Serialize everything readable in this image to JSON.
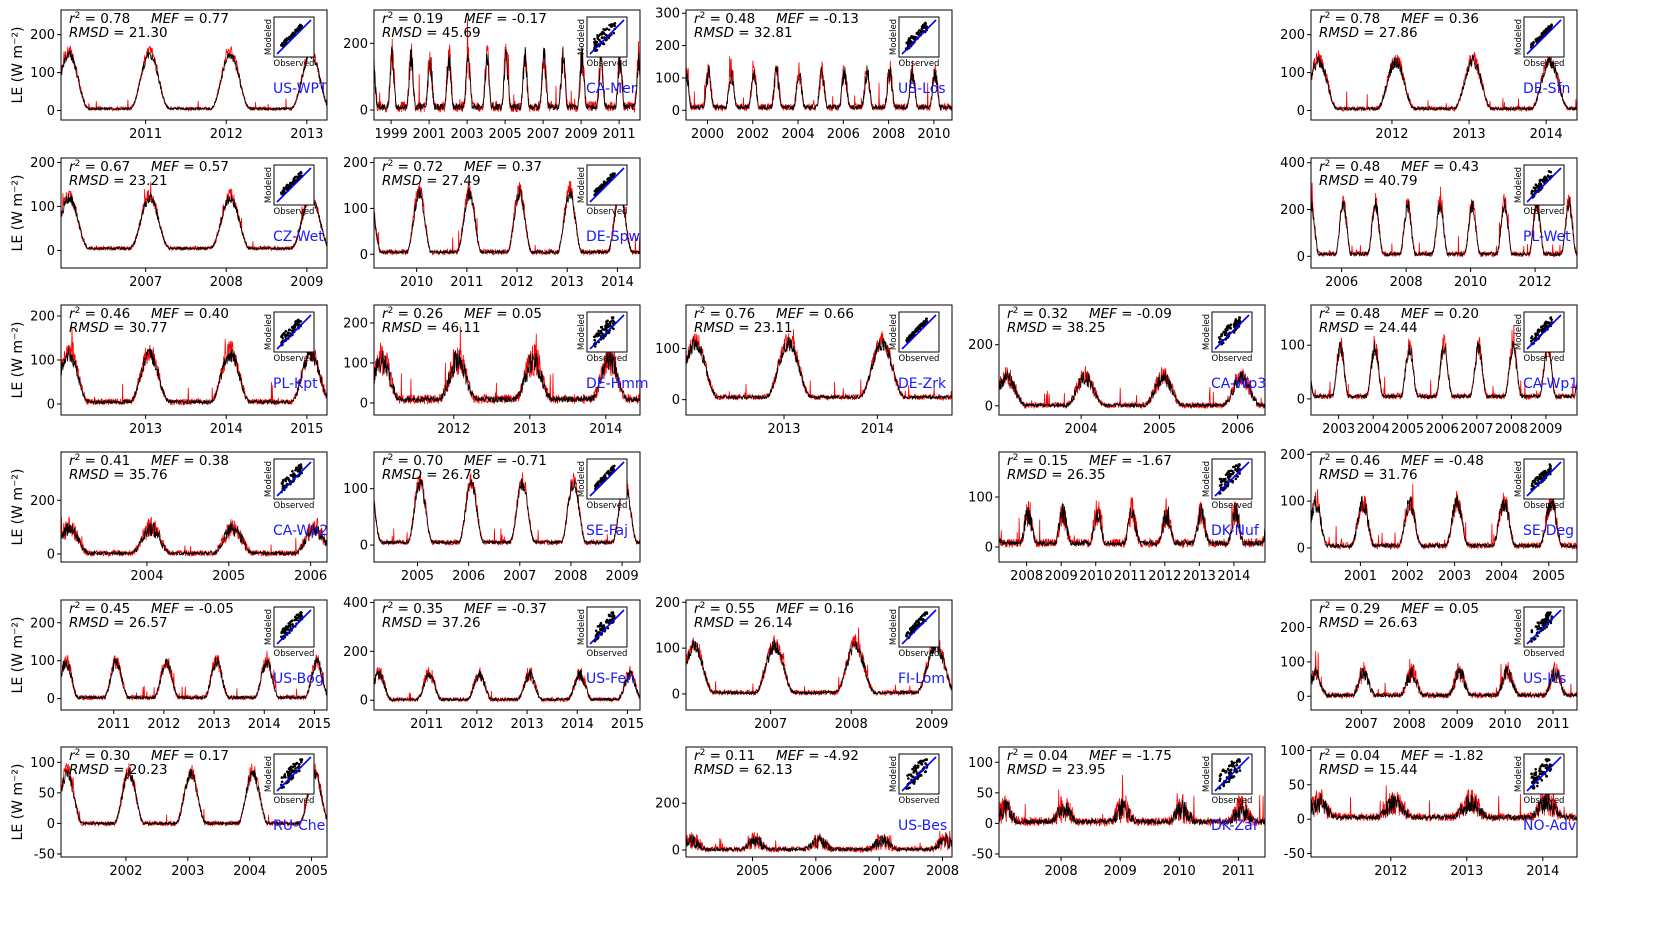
{
  "figure": {
    "ylabel": "LE (W m⁻²)",
    "inset_xlabel": "Observed",
    "inset_ylabel": "Modeled",
    "colors": {
      "observed": "#ff0000",
      "modeled": "#000000",
      "one_to_one": "#0000ff",
      "site_label": "#1a1aff"
    }
  },
  "chart_data": [
    {
      "type": "line",
      "site": "US-WPT",
      "r2": "0.78",
      "mef": "0.77",
      "rmsd": "21.30",
      "xticks": [
        "2011",
        "2012",
        "2013"
      ],
      "xlim": [
        2010.45,
        2013.75
      ],
      "yticks": [
        0,
        100,
        200
      ],
      "ylim": [
        -25,
        265
      ],
      "peak": 155,
      "floor": 5,
      "noise": 12,
      "spikes": []
    },
    {
      "type": "line",
      "site": "CA-Mer",
      "r2": "0.19",
      "mef": "-0.17",
      "rmsd": "45.69",
      "xticks": [
        "1999",
        "2001",
        "2003",
        "2005",
        "2007",
        "2009",
        "2011"
      ],
      "xlim": [
        1998.6,
        2012.6
      ],
      "yticks": [
        0,
        200
      ],
      "ylim": [
        -30,
        300
      ],
      "peak": 160,
      "floor": 10,
      "noise": 40,
      "spikes": []
    },
    {
      "type": "line",
      "site": "US-Los",
      "r2": "0.48",
      "mef": "-0.13",
      "rmsd": "32.81",
      "xticks": [
        "2000",
        "2002",
        "2004",
        "2006",
        "2008",
        "2010"
      ],
      "xlim": [
        1999.55,
        2011.3
      ],
      "yticks": [
        0,
        100,
        200,
        300
      ],
      "ylim": [
        -30,
        310
      ],
      "peak": 120,
      "floor": 10,
      "noise": 28,
      "spikes": []
    },
    {
      "type": "line",
      "site": "DE-Sfn",
      "r2": "0.78",
      "mef": "0.36",
      "rmsd": "27.86",
      "xticks": [
        "2012",
        "2013",
        "2014"
      ],
      "xlim": [
        2011.45,
        2014.9
      ],
      "yticks": [
        0,
        100,
        200
      ],
      "ylim": [
        -25,
        265
      ],
      "peak": 135,
      "floor": 5,
      "noise": 16,
      "spikes": []
    },
    {
      "type": "line",
      "site": "CZ-Wet",
      "r2": "0.67",
      "mef": "0.57",
      "rmsd": "23.21",
      "xticks": [
        "2007",
        "2008",
        "2009"
      ],
      "xlim": [
        2006.45,
        2009.75
      ],
      "yticks": [
        0,
        100,
        200
      ],
      "ylim": [
        -40,
        210
      ],
      "peak": 125,
      "floor": 5,
      "noise": 12,
      "spikes": []
    },
    {
      "type": "line",
      "site": "DE-Spw",
      "r2": "0.72",
      "mef": "0.37",
      "rmsd": "27.49",
      "xticks": [
        "2010",
        "2011",
        "2012",
        "2013",
        "2014"
      ],
      "xlim": [
        2009.65,
        2014.95
      ],
      "yticks": [
        0,
        100,
        200
      ],
      "ylim": [
        -30,
        210
      ],
      "peak": 140,
      "floor": 5,
      "noise": 15,
      "spikes": []
    },
    {
      "type": "line",
      "site": "PL-Wet",
      "r2": "0.48",
      "mef": "0.43",
      "rmsd": "40.79",
      "xticks": [
        "2006",
        "2008",
        "2010",
        "2012"
      ],
      "xlim": [
        2005.55,
        2013.8
      ],
      "yticks": [
        0,
        200,
        400
      ],
      "ylim": [
        -50,
        420
      ],
      "peak": 230,
      "floor": 10,
      "noise": 30,
      "spikes": []
    },
    {
      "type": "line",
      "site": "PL-Kpt",
      "r2": "0.46",
      "mef": "0.40",
      "rmsd": "30.77",
      "xticks": [
        "2013",
        "2014",
        "2015"
      ],
      "xlim": [
        2012.45,
        2015.75
      ],
      "yticks": [
        0,
        100,
        200
      ],
      "ylim": [
        -25,
        225
      ],
      "peak": 120,
      "floor": 5,
      "noise": 18,
      "spikes": []
    },
    {
      "type": "line",
      "site": "DE-Hmm",
      "r2": "0.26",
      "mef": "0.05",
      "rmsd": "46.11",
      "xticks": [
        "2012",
        "2013",
        "2014"
      ],
      "xlim": [
        2011.45,
        2014.95
      ],
      "yticks": [
        0,
        100,
        200
      ],
      "ylim": [
        -30,
        245
      ],
      "peak": 110,
      "floor": 10,
      "noise": 30,
      "spikes": []
    },
    {
      "type": "line",
      "site": "DE-Zrk",
      "r2": "0.76",
      "mef": "0.66",
      "rmsd": "23.11",
      "xticks": [
        "2013",
        "2014"
      ],
      "xlim": [
        2012.45,
        2015.3
      ],
      "yticks": [
        0,
        100
      ],
      "ylim": [
        -30,
        185
      ],
      "peak": 115,
      "floor": 5,
      "noise": 14,
      "spikes": []
    },
    {
      "type": "line",
      "site": "CA-Wp3",
      "r2": "0.32",
      "mef": "-0.09",
      "rmsd": "38.25",
      "xticks": [
        "2004",
        "2005",
        "2006"
      ],
      "xlim": [
        2003.45,
        2006.85
      ],
      "yticks": [
        0,
        200
      ],
      "ylim": [
        -30,
        330
      ],
      "peak": 95,
      "floor": 2,
      "noise": 25,
      "spikes": []
    },
    {
      "type": "line",
      "site": "CA-Wp1",
      "r2": "0.48",
      "mef": "0.20",
      "rmsd": "24.44",
      "xticks": [
        "2003",
        "2004",
        "2005",
        "2006",
        "2007",
        "2008",
        "2009"
      ],
      "xlim": [
        2002.7,
        2010.4
      ],
      "yticks": [
        0,
        100
      ],
      "ylim": [
        -30,
        175
      ],
      "peak": 100,
      "floor": 5,
      "noise": 14,
      "spikes": []
    },
    {
      "type": "line",
      "site": "CA-Wp2",
      "r2": "0.41",
      "mef": "0.38",
      "rmsd": "35.76",
      "xticks": [
        "2004",
        "2005",
        "2006"
      ],
      "xlim": [
        2003.45,
        2006.7
      ],
      "yticks": [
        0,
        200
      ],
      "ylim": [
        -30,
        380
      ],
      "peak": 100,
      "floor": 3,
      "noise": 28,
      "spikes": []
    },
    {
      "type": "line",
      "site": "SE-Faj",
      "r2": "0.70",
      "mef": "-0.71",
      "rmsd": "26.78",
      "xticks": [
        "2005",
        "2006",
        "2007",
        "2008",
        "2009"
      ],
      "xlim": [
        2004.65,
        2009.85
      ],
      "yticks": [
        0,
        100
      ],
      "ylim": [
        -30,
        165
      ],
      "peak": 115,
      "floor": 5,
      "noise": 12,
      "spikes": []
    },
    {
      "type": "line",
      "site": "DK-Nuf",
      "r2": "0.15",
      "mef": "-1.67",
      "rmsd": "26.35",
      "xticks": [
        "2008",
        "2009",
        "2010",
        "2011",
        "2012",
        "2013",
        "2014"
      ],
      "xlim": [
        2007.7,
        2015.4
      ],
      "yticks": [
        0,
        100
      ],
      "ylim": [
        -30,
        190
      ],
      "peak": 70,
      "floor": 8,
      "noise": 22,
      "spikes": []
    },
    {
      "type": "line",
      "site": "SE-Deg",
      "r2": "0.46",
      "mef": "-0.48",
      "rmsd": "31.76",
      "xticks": [
        "2001",
        "2002",
        "2003",
        "2004",
        "2005"
      ],
      "xlim": [
        2000.45,
        2006.1
      ],
      "yticks": [
        0,
        100,
        200
      ],
      "ylim": [
        -30,
        205
      ],
      "peak": 100,
      "floor": 5,
      "noise": 18,
      "spikes": []
    },
    {
      "type": "line",
      "site": "US-Bog",
      "r2": "0.45",
      "mef": "-0.05",
      "rmsd": "26.57",
      "xticks": [
        "2011",
        "2012",
        "2013",
        "2014",
        "2015"
      ],
      "xlim": [
        2010.45,
        2015.75
      ],
      "yticks": [
        0,
        100,
        200
      ],
      "ylim": [
        -30,
        260
      ],
      "peak": 100,
      "floor": 3,
      "noise": 16,
      "spikes": []
    },
    {
      "type": "line",
      "site": "US-Fen",
      "r2": "0.35",
      "mef": "-0.37",
      "rmsd": "37.26",
      "xticks": [
        "2011",
        "2012",
        "2013",
        "2014",
        "2015"
      ],
      "xlim": [
        2010.45,
        2015.75
      ],
      "yticks": [
        0,
        200,
        400
      ],
      "ylim": [
        -40,
        410
      ],
      "peak": 110,
      "floor": 3,
      "noise": 22,
      "spikes": []
    },
    {
      "type": "line",
      "site": "FI-Lom",
      "r2": "0.55",
      "mef": "0.16",
      "rmsd": "26.14",
      "xticks": [
        "2007",
        "2008",
        "2009"
      ],
      "xlim": [
        2006.45,
        2009.75
      ],
      "yticks": [
        0,
        100,
        200
      ],
      "ylim": [
        -35,
        205
      ],
      "peak": 110,
      "floor": 3,
      "noise": 15,
      "spikes": []
    },
    {
      "type": "line",
      "site": "US-Ics",
      "r2": "0.29",
      "mef": "0.05",
      "rmsd": "26.63",
      "xticks": [
        "2007",
        "2008",
        "2009",
        "2010",
        "2011"
      ],
      "xlim": [
        2006.45,
        2012.0
      ],
      "yticks": [
        0,
        100,
        200
      ],
      "ylim": [
        -40,
        280
      ],
      "peak": 70,
      "floor": 3,
      "noise": 22,
      "spikes": []
    },
    {
      "type": "line",
      "site": "RU-Che",
      "r2": "0.30",
      "mef": "0.17",
      "rmsd": "20.23",
      "xticks": [
        "2002",
        "2003",
        "2004",
        "2005"
      ],
      "xlim": [
        2001.45,
        2005.75
      ],
      "yticks": [
        -50,
        0,
        50,
        100
      ],
      "ylim": [
        -55,
        125
      ],
      "peak": 85,
      "floor": 0,
      "noise": 10,
      "spikes": []
    },
    {
      "type": "line",
      "site": "US-Bes",
      "r2": "0.11",
      "mef": "-4.92",
      "rmsd": "62.13",
      "xticks": [
        "2005",
        "2006",
        "2007",
        "2008"
      ],
      "xlim": [
        2004.45,
        2008.65
      ],
      "yticks": [
        0,
        200
      ],
      "ylim": [
        -30,
        440
      ],
      "peak": 40,
      "floor": 3,
      "noise": 30,
      "spikes": []
    },
    {
      "type": "line",
      "site": "DK-Zaf",
      "r2": "0.04",
      "mef": "-1.75",
      "rmsd": "23.95",
      "xticks": [
        "2008",
        "2009",
        "2010",
        "2011"
      ],
      "xlim": [
        2007.45,
        2011.95
      ],
      "yticks": [
        -50,
        0,
        50,
        100
      ],
      "ylim": [
        -55,
        125
      ],
      "peak": 25,
      "floor": 3,
      "noise": 18,
      "spikes": []
    },
    {
      "type": "line",
      "site": "NO-Adv",
      "r2": "0.04",
      "mef": "-1.82",
      "rmsd": "15.44",
      "xticks": [
        "2012",
        "2013",
        "2014"
      ],
      "xlim": [
        2011.45,
        2014.95
      ],
      "yticks": [
        -50,
        0,
        50,
        100
      ],
      "ylim": [
        -55,
        105
      ],
      "peak": 25,
      "floor": 3,
      "noise": 15,
      "spikes": []
    }
  ]
}
